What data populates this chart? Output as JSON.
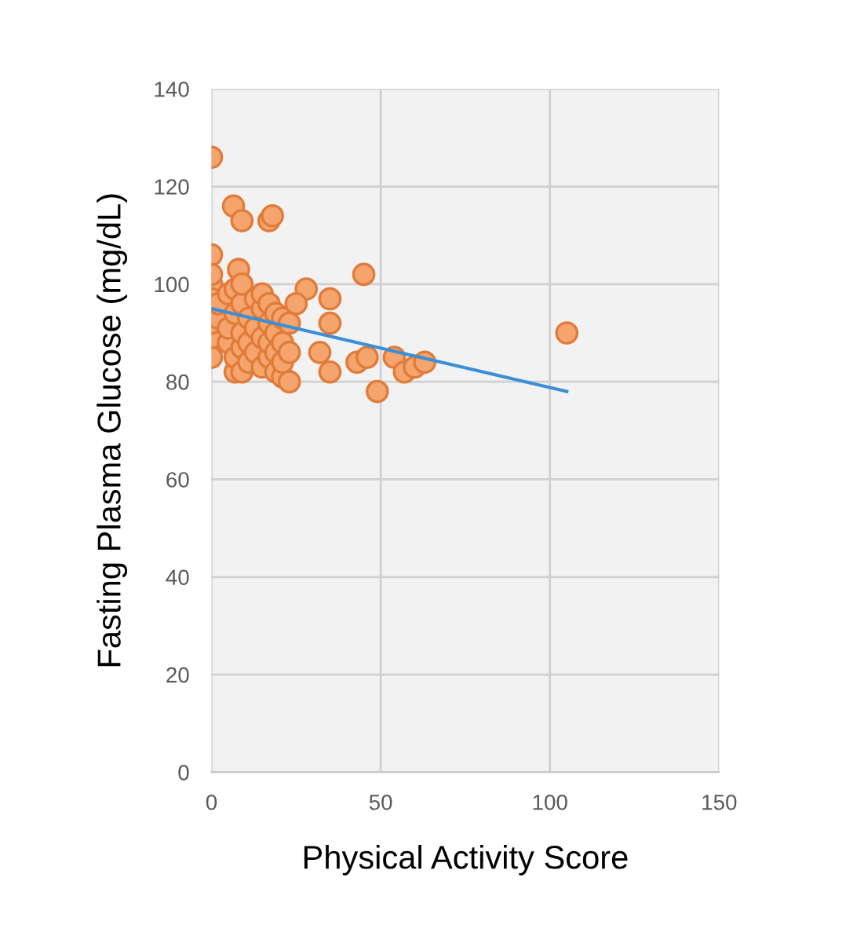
{
  "chart_data": {
    "type": "scatter",
    "xlabel": "Physical Activity Score",
    "ylabel": "Fasting Plasma Glucose (mg/dL)",
    "xlim": [
      0,
      150
    ],
    "xticks": [
      0,
      50,
      100,
      150
    ],
    "ylim": [
      0,
      140
    ],
    "yticks": [
      0,
      20,
      40,
      60,
      80,
      100,
      120,
      140
    ],
    "grid": true,
    "legend": false,
    "marker": "circle",
    "series": [
      {
        "color": "#f4a46c",
        "x": [
          0,
          6.5,
          9,
          17,
          18,
          0,
          8,
          45,
          28,
          35,
          35,
          32,
          35,
          43,
          46,
          49,
          54,
          57,
          60,
          63,
          105,
          0,
          0,
          0,
          0,
          0,
          0,
          2,
          2,
          5,
          5,
          5,
          7,
          7,
          7,
          7,
          9,
          9,
          9,
          9,
          9,
          11,
          11,
          11,
          13,
          13,
          13,
          15,
          15,
          15,
          15,
          17,
          17,
          17,
          17,
          19,
          19,
          19,
          19,
          21,
          21,
          21,
          21,
          23,
          23,
          23,
          25
        ],
        "values": [
          126,
          116,
          113,
          113,
          114,
          106,
          103,
          102,
          99,
          97,
          92,
          86,
          82,
          84,
          85,
          78,
          85,
          82,
          83,
          84,
          90,
          85,
          89,
          92,
          100,
          102,
          97,
          93,
          96,
          88,
          91,
          98,
          82,
          85,
          94,
          99,
          82,
          87,
          90,
          96,
          100,
          84,
          88,
          93,
          86,
          91,
          97,
          83,
          89,
          95,
          98,
          85,
          88,
          92,
          96,
          82,
          86,
          90,
          94,
          81,
          84,
          88,
          93,
          80,
          86,
          92,
          96
        ]
      },
      {
        "type": "line",
        "color": "#3c8fd6",
        "x": [
          0,
          105
        ],
        "values": [
          95,
          78
        ],
        "marker": "none"
      }
    ]
  }
}
